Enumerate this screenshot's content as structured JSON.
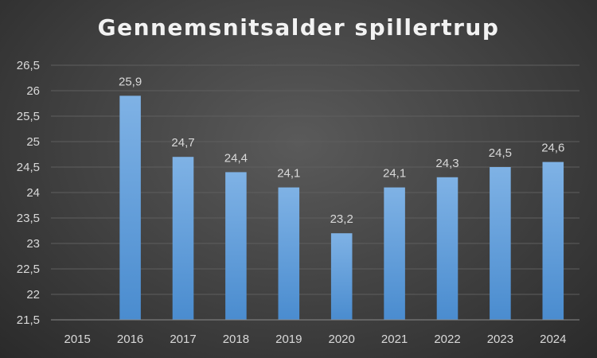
{
  "chart_data": {
    "type": "bar",
    "title": "Gennemsnitsalder spillertrup",
    "xlabel": "",
    "ylabel": "",
    "categories": [
      "2015",
      "2016",
      "2017",
      "2018",
      "2019",
      "2020",
      "2021",
      "2022",
      "2023",
      "2024"
    ],
    "values": [
      null,
      25.9,
      24.7,
      24.4,
      24.1,
      23.2,
      24.1,
      24.3,
      24.5,
      24.6
    ],
    "data_labels": [
      "",
      "25,9",
      "24,7",
      "24,4",
      "24,1",
      "23,2",
      "24,1",
      "24,3",
      "24,5",
      "24,6"
    ],
    "ylim": [
      21.5,
      26.5
    ],
    "yticks": [
      21.5,
      22,
      22.5,
      23,
      23.5,
      24,
      24.5,
      25,
      25.5,
      26,
      26.5
    ],
    "ytick_labels": [
      "21,5",
      "22",
      "22,5",
      "23",
      "23,5",
      "24",
      "24,5",
      "25",
      "25,5",
      "26",
      "26,5"
    ],
    "grid": true,
    "legend": "none",
    "bar_color": "#5b9bd5"
  }
}
